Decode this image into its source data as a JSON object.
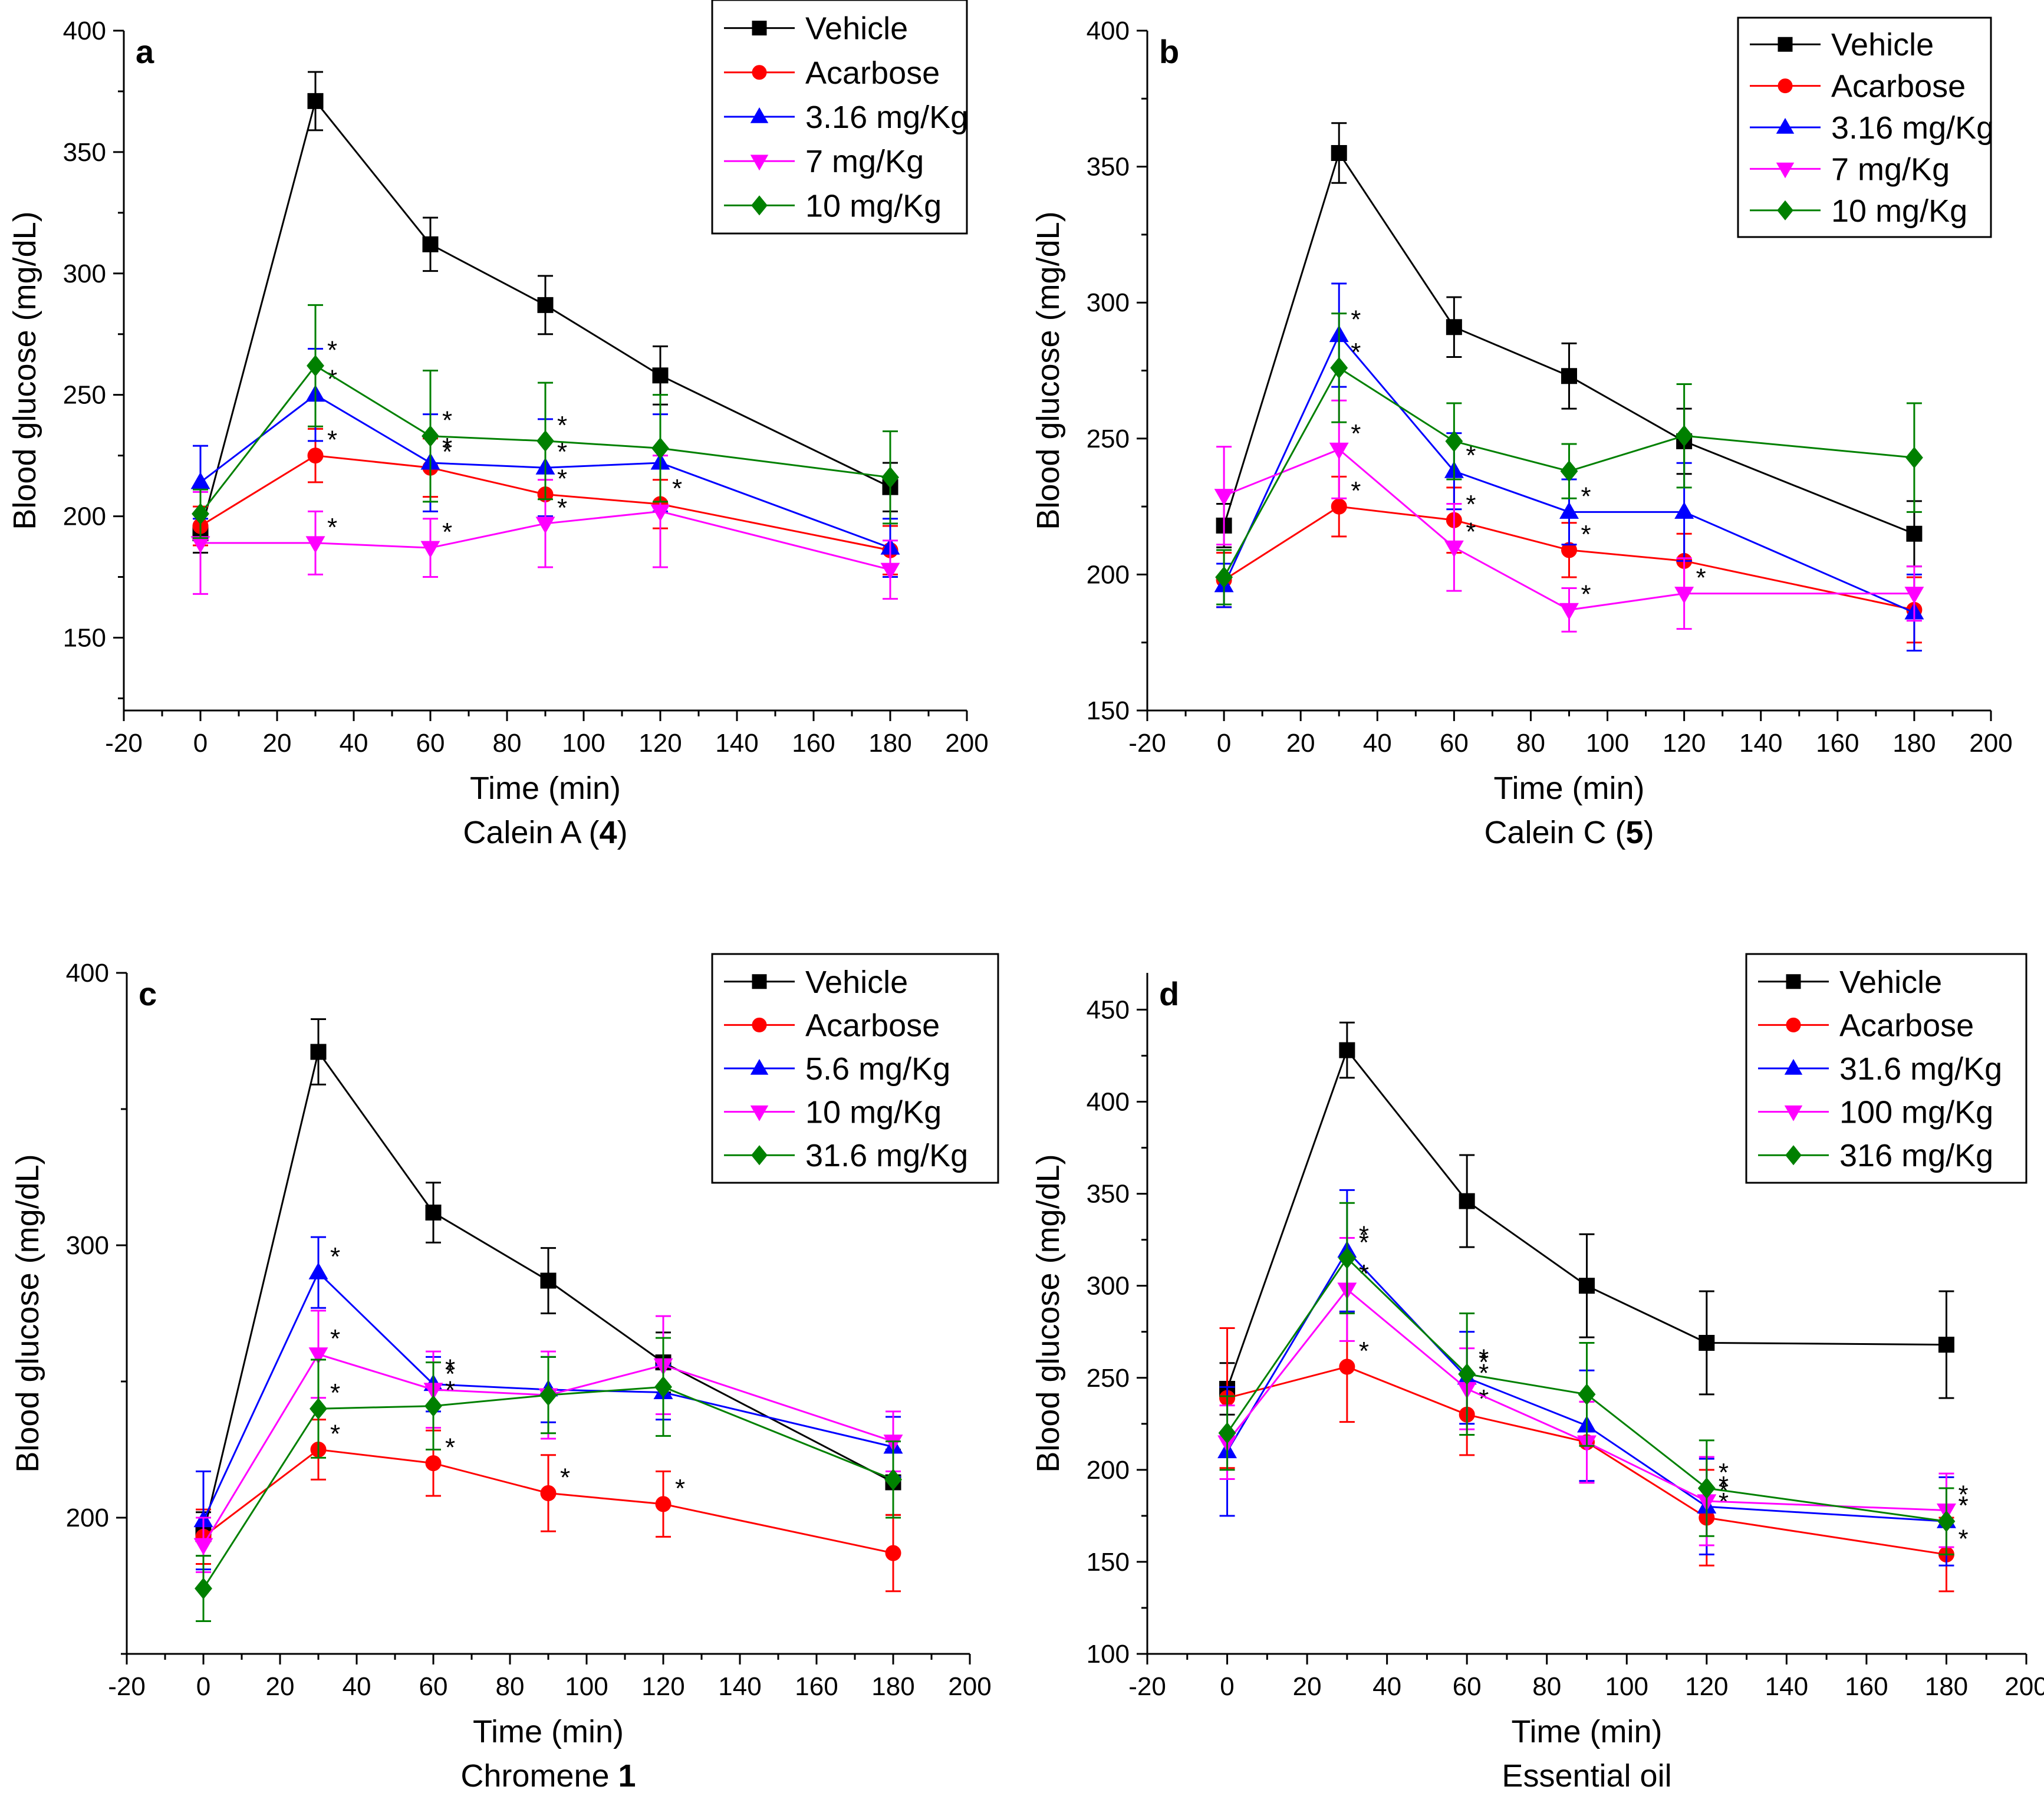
{
  "figure": {
    "aria_label": "Blood glucose time-course plots, panels a to d"
  },
  "chart_data": [
    {
      "type": "line",
      "panel": "a",
      "caption": "Calein A (",
      "caption_bold": "4",
      "caption_tail": ")",
      "xlabel": "Time (min)",
      "ylabel": "Blood glucose (mg/dL)",
      "xlim": [
        -20,
        200
      ],
      "ylim": [
        120,
        400
      ],
      "xticks": [
        -20,
        0,
        20,
        40,
        60,
        80,
        100,
        120,
        140,
        160,
        180,
        200
      ],
      "yticks": [
        150,
        200,
        250,
        300,
        350,
        400
      ],
      "x": [
        0,
        30,
        60,
        90,
        120,
        180
      ],
      "series": [
        {
          "name": "Vehicle",
          "color": "#000000",
          "marker": "square",
          "values": [
            193,
            371,
            312,
            287,
            258,
            212
          ],
          "errors": [
            8,
            12,
            11,
            12,
            12,
            10
          ],
          "stars": [
            false,
            false,
            false,
            false,
            false,
            false
          ]
        },
        {
          "name": "Acarbose",
          "color": "#ff0000",
          "marker": "circle",
          "values": [
            196,
            225,
            220,
            209,
            205,
            186
          ],
          "errors": [
            8,
            11,
            12,
            9,
            10,
            10
          ],
          "stars": [
            false,
            true,
            true,
            true,
            true,
            false
          ]
        },
        {
          "name": "3.16 mg/Kg",
          "color": "#0000ff",
          "marker": "triangle-up",
          "values": [
            214,
            250,
            222,
            220,
            222,
            187
          ],
          "errors": [
            15,
            19,
            20,
            20,
            20,
            12
          ],
          "stars": [
            false,
            true,
            true,
            true,
            false,
            false
          ]
        },
        {
          "name": "7 mg/Kg",
          "color": "#ff00ff",
          "marker": "triangle-down",
          "values": [
            189,
            189,
            187,
            197,
            202,
            178
          ],
          "errors": [
            21,
            13,
            12,
            18,
            23,
            12
          ],
          "stars": [
            false,
            true,
            true,
            true,
            false,
            false
          ]
        },
        {
          "name": "10 mg/Kg",
          "color": "#008000",
          "marker": "diamond",
          "values": [
            201,
            262,
            233,
            231,
            228,
            216
          ],
          "errors": [
            10,
            25,
            27,
            24,
            22,
            19
          ],
          "stars": [
            false,
            true,
            true,
            true,
            false,
            false
          ]
        }
      ]
    },
    {
      "type": "line",
      "panel": "b",
      "caption": "Calein C (",
      "caption_bold": "5",
      "caption_tail": ")",
      "xlabel": "Time (min)",
      "ylabel": "Blood glucose (mg/dL)",
      "xlim": [
        -20,
        200
      ],
      "ylim": [
        150,
        400
      ],
      "xticks": [
        -20,
        0,
        20,
        40,
        60,
        80,
        100,
        120,
        140,
        160,
        180,
        200
      ],
      "yticks": [
        150,
        200,
        250,
        300,
        350,
        400
      ],
      "x": [
        0,
        30,
        60,
        90,
        120,
        180
      ],
      "series": [
        {
          "name": "Vehicle",
          "color": "#000000",
          "marker": "square",
          "values": [
            218,
            355,
            291,
            273,
            249,
            215
          ],
          "errors": [
            8,
            11,
            11,
            12,
            12,
            12
          ],
          "stars": [
            false,
            false,
            false,
            false,
            false,
            false
          ]
        },
        {
          "name": "Acarbose",
          "color": "#ff0000",
          "marker": "circle",
          "values": [
            198,
            225,
            220,
            209,
            205,
            187
          ],
          "errors": [
            10,
            11,
            12,
            10,
            10,
            12
          ],
          "stars": [
            false,
            true,
            true,
            true,
            false,
            false
          ]
        },
        {
          "name": "3.16 mg/Kg",
          "color": "#0000ff",
          "marker": "triangle-up",
          "values": [
            196,
            288,
            238,
            223,
            223,
            186
          ],
          "errors": [
            8,
            19,
            14,
            12,
            18,
            14
          ],
          "stars": [
            false,
            true,
            true,
            true,
            false,
            false
          ]
        },
        {
          "name": "7 mg/Kg",
          "color": "#ff00ff",
          "marker": "triangle-down",
          "values": [
            229,
            246,
            210,
            187,
            193,
            193
          ],
          "errors": [
            18,
            18,
            16,
            8,
            13,
            10
          ],
          "stars": [
            false,
            true,
            true,
            true,
            true,
            false
          ]
        },
        {
          "name": "10 mg/Kg",
          "color": "#008000",
          "marker": "diamond",
          "values": [
            199,
            276,
            249,
            238,
            251,
            243
          ],
          "errors": [
            10,
            20,
            14,
            10,
            19,
            20
          ],
          "stars": [
            false,
            true,
            false,
            false,
            false,
            false
          ]
        }
      ]
    },
    {
      "type": "line",
      "panel": "c",
      "caption": "Chromene ",
      "caption_bold": "1",
      "caption_tail": "",
      "xlabel": "Time (min)",
      "ylabel": "Blood glucose (mg/dL)",
      "xlim": [
        -20,
        200
      ],
      "ylim": [
        150,
        400
      ],
      "xticks": [
        -20,
        0,
        20,
        40,
        60,
        80,
        100,
        120,
        140,
        160,
        180,
        200
      ],
      "yticks": [
        200,
        300,
        400
      ],
      "x": [
        0,
        30,
        60,
        90,
        120,
        180
      ],
      "series": [
        {
          "name": "Vehicle",
          "color": "#000000",
          "marker": "square",
          "values": [
            194,
            371,
            312,
            287,
            257,
            213
          ],
          "errors": [
            8,
            12,
            11,
            12,
            11,
            12
          ],
          "stars": [
            false,
            false,
            false,
            false,
            false,
            false
          ]
        },
        {
          "name": "Acarbose",
          "color": "#ff0000",
          "marker": "circle",
          "values": [
            193,
            225,
            220,
            209,
            205,
            187
          ],
          "errors": [
            10,
            11,
            12,
            14,
            12,
            14
          ],
          "stars": [
            false,
            true,
            true,
            true,
            true,
            false
          ]
        },
        {
          "name": "5.6 mg/Kg",
          "color": "#0000ff",
          "marker": "triangle-up",
          "values": [
            199,
            290,
            249,
            247,
            246,
            226
          ],
          "errors": [
            18,
            13,
            10,
            12,
            10,
            11
          ],
          "stars": [
            false,
            true,
            true,
            false,
            false,
            false
          ]
        },
        {
          "name": "10 mg/Kg",
          "color": "#ff00ff",
          "marker": "triangle-down",
          "values": [
            190,
            260,
            247,
            245,
            256,
            228
          ],
          "errors": [
            10,
            16,
            14,
            16,
            18,
            11
          ],
          "stars": [
            false,
            true,
            true,
            false,
            false,
            false
          ]
        },
        {
          "name": "31.6 mg/Kg",
          "color": "#008000",
          "marker": "diamond",
          "values": [
            174,
            240,
            241,
            245,
            248,
            214
          ],
          "errors": [
            12,
            18,
            16,
            14,
            18,
            14
          ],
          "stars": [
            false,
            true,
            true,
            false,
            false,
            false
          ]
        }
      ]
    },
    {
      "type": "line",
      "panel": "d",
      "caption": "Essential oil",
      "caption_bold": "",
      "caption_tail": "",
      "xlabel": "Time (min)",
      "ylabel": "Blood glucose (mg/dL)",
      "xlim": [
        -20,
        200
      ],
      "ylim": [
        100,
        470
      ],
      "xticks": [
        -20,
        0,
        20,
        40,
        60,
        80,
        100,
        120,
        140,
        160,
        180,
        200
      ],
      "yticks": [
        100,
        150,
        200,
        250,
        300,
        350,
        400,
        450
      ],
      "x": [
        0,
        30,
        60,
        90,
        120,
        180
      ],
      "series": [
        {
          "name": "Vehicle",
          "color": "#000000",
          "marker": "square",
          "values": [
            244,
            428,
            346,
            300,
            269,
            268
          ],
          "errors": [
            14,
            15,
            25,
            28,
            28,
            29
          ],
          "stars": [
            false,
            false,
            false,
            false,
            false,
            false
          ]
        },
        {
          "name": "Acarbose",
          "color": "#ff0000",
          "marker": "circle",
          "values": [
            239,
            256,
            230,
            215,
            174,
            154
          ],
          "errors": [
            38,
            30,
            22,
            22,
            26,
            20
          ],
          "stars": [
            false,
            true,
            true,
            false,
            true,
            true
          ]
        },
        {
          "name": "31.6 mg/Kg",
          "color": "#0000ff",
          "marker": "triangle-up",
          "values": [
            210,
            319,
            250,
            224,
            180,
            172
          ],
          "errors": [
            35,
            33,
            25,
            30,
            26,
            24
          ],
          "stars": [
            false,
            true,
            true,
            false,
            true,
            true
          ]
        },
        {
          "name": "100 mg/Kg",
          "color": "#ff00ff",
          "marker": "triangle-down",
          "values": [
            215,
            298,
            244,
            215,
            183,
            178
          ],
          "errors": [
            20,
            28,
            22,
            22,
            24,
            20
          ],
          "stars": [
            false,
            true,
            true,
            false,
            true,
            true
          ]
        },
        {
          "name": "316 mg/Kg",
          "color": "#008000",
          "marker": "diamond",
          "values": [
            220,
            315,
            252,
            241,
            190,
            172
          ],
          "errors": [
            20,
            30,
            33,
            28,
            26,
            18
          ],
          "stars": [
            false,
            true,
            true,
            false,
            true,
            true
          ]
        }
      ]
    }
  ]
}
